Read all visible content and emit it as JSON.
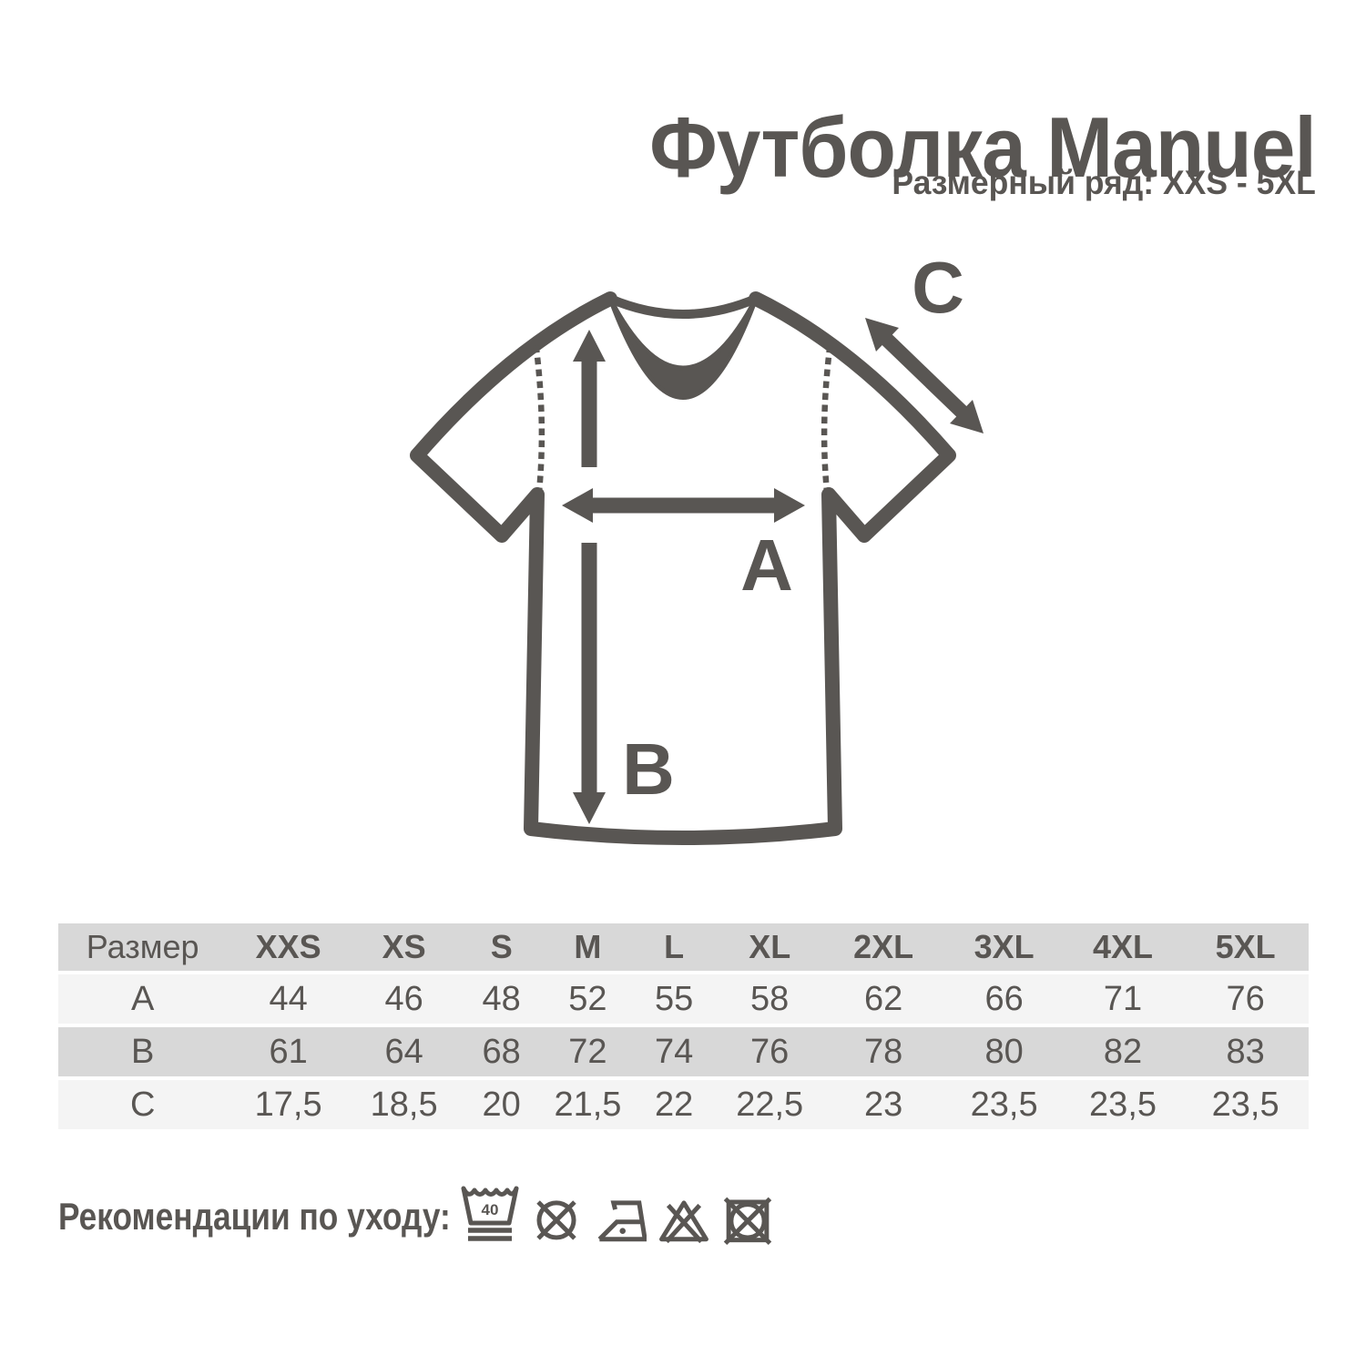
{
  "colors": {
    "ink": "#595653",
    "table_dark_row": "#d8d8d8",
    "table_light_row": "#f4f4f4",
    "background": "#ffffff"
  },
  "header": {
    "title": "Футболка Manuel",
    "size_range": "Размерный ряд: XXS - 5XL"
  },
  "diagram": {
    "label_a": "A",
    "label_b": "B",
    "label_c": "C"
  },
  "size_table": {
    "columns": [
      "Размер",
      "XXS",
      "XS",
      "S",
      "M",
      "L",
      "XL",
      "2XL",
      "3XL",
      "4XL",
      "5XL"
    ],
    "rows": [
      {
        "label": "A",
        "values": [
          "44",
          "46",
          "48",
          "52",
          "55",
          "58",
          "62",
          "66",
          "71",
          "76"
        ]
      },
      {
        "label": "B",
        "values": [
          "61",
          "64",
          "68",
          "72",
          "74",
          "76",
          "78",
          "80",
          "82",
          "83"
        ]
      },
      {
        "label": "C",
        "values": [
          "17,5",
          "18,5",
          "20",
          "21,5",
          "22",
          "22,5",
          "23",
          "23,5",
          "23,5",
          "23,5"
        ]
      }
    ]
  },
  "care": {
    "label": "Рекомендации по уходу:",
    "wash_temperature": "40",
    "icons": [
      "wash-40",
      "do-not-dry-clean",
      "iron-one-dot",
      "do-not-bleach",
      "do-not-tumble-dry"
    ]
  }
}
